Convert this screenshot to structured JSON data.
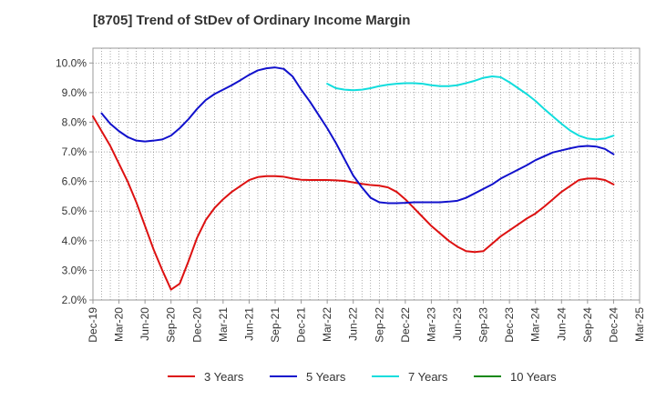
{
  "chart_data": {
    "type": "line",
    "title": "[8705]  Trend of StDev of Ordinary Income Margin",
    "xlabel": "",
    "ylabel": "",
    "x_categories": [
      "Dec-19",
      "Mar-20",
      "Jun-20",
      "Sep-20",
      "Dec-20",
      "Mar-21",
      "Jun-21",
      "Sep-21",
      "Dec-21",
      "Mar-22",
      "Jun-22",
      "Sep-22",
      "Dec-22",
      "Mar-23",
      "Jun-23",
      "Sep-23",
      "Dec-23",
      "Mar-24",
      "Jun-24",
      "Sep-24",
      "Dec-24",
      "Mar-25"
    ],
    "y_ticks": [
      "2.0%",
      "3.0%",
      "4.0%",
      "5.0%",
      "6.0%",
      "7.0%",
      "8.0%",
      "9.0%",
      "10.0%"
    ],
    "ylim": [
      2.0,
      10.5
    ],
    "grid": true,
    "legend_position": "bottom",
    "series": [
      {
        "name": "3 Years",
        "color": "#dd1111",
        "points": [
          [
            "Dec-19",
            8.2
          ],
          [
            "Jan-20",
            7.7
          ],
          [
            "Feb-20",
            7.2
          ],
          [
            "Mar-20",
            6.6
          ],
          [
            "Apr-20",
            6.0
          ],
          [
            "May-20",
            5.3
          ],
          [
            "Jun-20",
            4.5
          ],
          [
            "Jul-20",
            3.7
          ],
          [
            "Aug-20",
            3.0
          ],
          [
            "Sep-20",
            2.35
          ],
          [
            "Oct-20",
            2.55
          ],
          [
            "Nov-20",
            3.3
          ],
          [
            "Dec-20",
            4.1
          ],
          [
            "Jan-21",
            4.7
          ],
          [
            "Feb-21",
            5.1
          ],
          [
            "Mar-21",
            5.4
          ],
          [
            "Apr-21",
            5.65
          ],
          [
            "May-21",
            5.85
          ],
          [
            "Jun-21",
            6.05
          ],
          [
            "Jul-21",
            6.15
          ],
          [
            "Aug-21",
            6.18
          ],
          [
            "Sep-21",
            6.18
          ],
          [
            "Oct-21",
            6.16
          ],
          [
            "Nov-21",
            6.1
          ],
          [
            "Dec-21",
            6.06
          ],
          [
            "Jan-22",
            6.05
          ],
          [
            "Feb-22",
            6.05
          ],
          [
            "Mar-22",
            6.05
          ],
          [
            "Apr-22",
            6.04
          ],
          [
            "May-22",
            6.02
          ],
          [
            "Jun-22",
            5.97
          ],
          [
            "Jul-22",
            5.92
          ],
          [
            "Aug-22",
            5.88
          ],
          [
            "Sep-22",
            5.86
          ],
          [
            "Oct-22",
            5.8
          ],
          [
            "Nov-22",
            5.65
          ],
          [
            "Dec-22",
            5.4
          ],
          [
            "Jan-23",
            5.1
          ],
          [
            "Feb-23",
            4.8
          ],
          [
            "Mar-23",
            4.5
          ],
          [
            "Apr-23",
            4.25
          ],
          [
            "May-23",
            4.0
          ],
          [
            "Jun-23",
            3.8
          ],
          [
            "Jul-23",
            3.65
          ],
          [
            "Aug-23",
            3.62
          ],
          [
            "Sep-23",
            3.65
          ],
          [
            "Oct-23",
            3.9
          ],
          [
            "Nov-23",
            4.15
          ],
          [
            "Dec-23",
            4.35
          ],
          [
            "Jan-24",
            4.55
          ],
          [
            "Feb-24",
            4.75
          ],
          [
            "Mar-24",
            4.92
          ],
          [
            "Apr-24",
            5.15
          ],
          [
            "May-24",
            5.4
          ],
          [
            "Jun-24",
            5.65
          ],
          [
            "Jul-24",
            5.85
          ],
          [
            "Aug-24",
            6.05
          ],
          [
            "Sep-24",
            6.1
          ],
          [
            "Oct-24",
            6.1
          ],
          [
            "Nov-24",
            6.05
          ],
          [
            "Dec-24",
            5.9
          ]
        ]
      },
      {
        "name": "5 Years",
        "color": "#1111cc",
        "points": [
          [
            "Jan-20",
            8.3
          ],
          [
            "Feb-20",
            7.95
          ],
          [
            "Mar-20",
            7.7
          ],
          [
            "Apr-20",
            7.5
          ],
          [
            "May-20",
            7.38
          ],
          [
            "Jun-20",
            7.35
          ],
          [
            "Jul-20",
            7.38
          ],
          [
            "Aug-20",
            7.42
          ],
          [
            "Sep-20",
            7.55
          ],
          [
            "Oct-20",
            7.8
          ],
          [
            "Nov-20",
            8.1
          ],
          [
            "Dec-20",
            8.45
          ],
          [
            "Jan-21",
            8.75
          ],
          [
            "Feb-21",
            8.95
          ],
          [
            "Mar-21",
            9.1
          ],
          [
            "Apr-21",
            9.25
          ],
          [
            "May-21",
            9.42
          ],
          [
            "Jun-21",
            9.6
          ],
          [
            "Jul-21",
            9.75
          ],
          [
            "Aug-21",
            9.82
          ],
          [
            "Sep-21",
            9.85
          ],
          [
            "Oct-21",
            9.8
          ],
          [
            "Nov-21",
            9.55
          ],
          [
            "Dec-21",
            9.1
          ],
          [
            "Jan-22",
            8.7
          ],
          [
            "Feb-22",
            8.25
          ],
          [
            "Mar-22",
            7.8
          ],
          [
            "Apr-22",
            7.3
          ],
          [
            "May-22",
            6.75
          ],
          [
            "Jun-22",
            6.2
          ],
          [
            "Jul-22",
            5.8
          ],
          [
            "Aug-22",
            5.45
          ],
          [
            "Sep-22",
            5.3
          ],
          [
            "Oct-22",
            5.27
          ],
          [
            "Nov-22",
            5.27
          ],
          [
            "Dec-22",
            5.28
          ],
          [
            "Jan-23",
            5.3
          ],
          [
            "Feb-23",
            5.3
          ],
          [
            "Mar-23",
            5.3
          ],
          [
            "Apr-23",
            5.3
          ],
          [
            "May-23",
            5.32
          ],
          [
            "Jun-23",
            5.35
          ],
          [
            "Jul-23",
            5.45
          ],
          [
            "Aug-23",
            5.6
          ],
          [
            "Sep-23",
            5.75
          ],
          [
            "Oct-23",
            5.9
          ],
          [
            "Nov-23",
            6.1
          ],
          [
            "Dec-23",
            6.25
          ],
          [
            "Jan-24",
            6.4
          ],
          [
            "Feb-24",
            6.55
          ],
          [
            "Mar-24",
            6.72
          ],
          [
            "Apr-24",
            6.85
          ],
          [
            "May-24",
            6.98
          ],
          [
            "Jun-24",
            7.05
          ],
          [
            "Jul-24",
            7.12
          ],
          [
            "Aug-24",
            7.18
          ],
          [
            "Sep-24",
            7.2
          ],
          [
            "Oct-24",
            7.18
          ],
          [
            "Nov-24",
            7.1
          ],
          [
            "Dec-24",
            6.92
          ]
        ]
      },
      {
        "name": "7 Years",
        "color": "#11dddd",
        "points": [
          [
            "Mar-22",
            9.3
          ],
          [
            "Apr-22",
            9.15
          ],
          [
            "May-22",
            9.1
          ],
          [
            "Jun-22",
            9.08
          ],
          [
            "Jul-22",
            9.1
          ],
          [
            "Aug-22",
            9.15
          ],
          [
            "Sep-22",
            9.22
          ],
          [
            "Oct-22",
            9.27
          ],
          [
            "Nov-22",
            9.3
          ],
          [
            "Dec-22",
            9.32
          ],
          [
            "Jan-23",
            9.32
          ],
          [
            "Feb-23",
            9.3
          ],
          [
            "Mar-23",
            9.25
          ],
          [
            "Apr-23",
            9.22
          ],
          [
            "May-23",
            9.22
          ],
          [
            "Jun-23",
            9.25
          ],
          [
            "Jul-23",
            9.32
          ],
          [
            "Aug-23",
            9.4
          ],
          [
            "Sep-23",
            9.5
          ],
          [
            "Oct-23",
            9.55
          ],
          [
            "Nov-23",
            9.52
          ],
          [
            "Dec-23",
            9.35
          ],
          [
            "Jan-24",
            9.15
          ],
          [
            "Feb-24",
            8.95
          ],
          [
            "Mar-24",
            8.72
          ],
          [
            "Apr-24",
            8.45
          ],
          [
            "May-24",
            8.2
          ],
          [
            "Jun-24",
            7.95
          ],
          [
            "Jul-24",
            7.72
          ],
          [
            "Aug-24",
            7.55
          ],
          [
            "Sep-24",
            7.45
          ],
          [
            "Oct-24",
            7.42
          ],
          [
            "Nov-24",
            7.45
          ],
          [
            "Dec-24",
            7.55
          ]
        ]
      },
      {
        "name": "10 Years",
        "color": "#118811",
        "points": []
      }
    ]
  }
}
